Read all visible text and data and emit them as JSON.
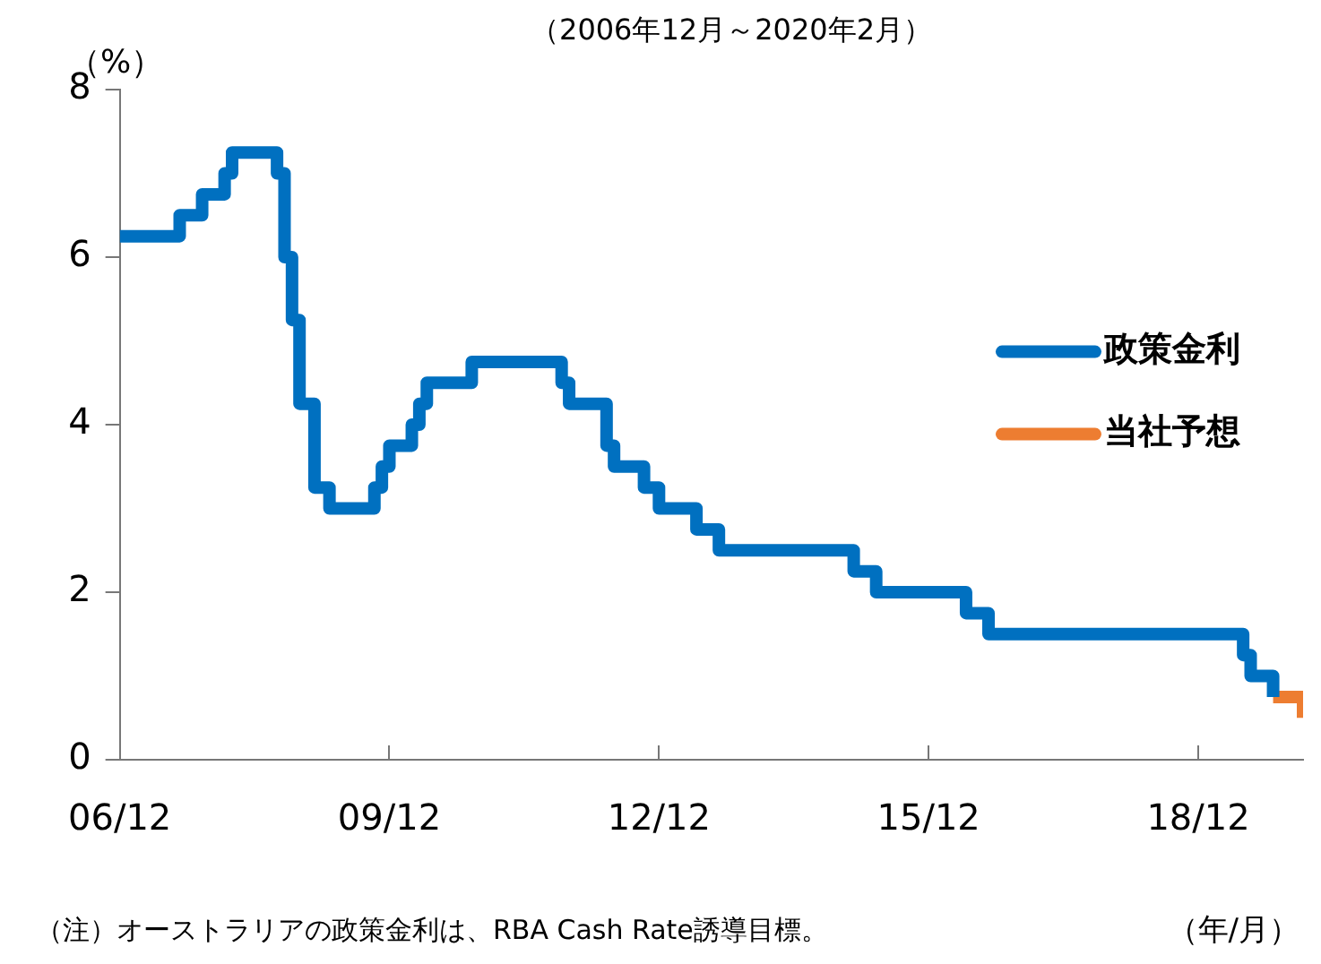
{
  "chart_data": {
    "type": "step",
    "title": "（2006年12月～2020年2月）",
    "ylabel": "（%）",
    "xlabel": "（年/月）",
    "annotations": [
      "（注）オーストラリアの政策金利は、RBA Cash Rate誘導目標。"
    ],
    "series": [
      {
        "name": "政策金利",
        "color": "#0070c0",
        "x": [
          "2006-12",
          "2007-08",
          "2007-11",
          "2008-02",
          "2008-03",
          "2008-09",
          "2008-10",
          "2008-11",
          "2008-12",
          "2009-02",
          "2009-04",
          "2009-10",
          "2009-11",
          "2009-12",
          "2010-03",
          "2010-04",
          "2010-05",
          "2010-11",
          "2011-11",
          "2011-12",
          "2012-05",
          "2012-06",
          "2012-10",
          "2012-12",
          "2013-05",
          "2013-08",
          "2015-02",
          "2015-05",
          "2016-05",
          "2016-08",
          "2019-06",
          "2019-07",
          "2019-10"
        ],
        "values": [
          6.25,
          6.5,
          6.75,
          7,
          7.25,
          7,
          6,
          5.25,
          4.25,
          3.25,
          3,
          3.25,
          3.5,
          3.75,
          4,
          4.25,
          4.5,
          4.75,
          4.5,
          4.25,
          3.75,
          3.5,
          3.25,
          3,
          2.75,
          2.5,
          2.25,
          2,
          1.75,
          1.5,
          1.25,
          1,
          0.75
        ]
      },
      {
        "name": "当社予想",
        "color": "#ed7d31",
        "x": [
          "2019-10",
          "2020-02"
        ],
        "values": [
          0.75,
          0.5
        ]
      }
    ],
    "xlim": [
      "2006-12",
      "2020-02"
    ],
    "xticks": [
      {
        "value": "2006-12",
        "label": "06/12"
      },
      {
        "value": "2009-12",
        "label": "09/12"
      },
      {
        "value": "2012-12",
        "label": "12/12"
      },
      {
        "value": "2015-12",
        "label": "15/12"
      },
      {
        "value": "2018-12",
        "label": "18/12"
      }
    ],
    "ylim": [
      0,
      8
    ],
    "yticks": [
      0,
      2,
      4,
      6,
      8
    ],
    "grid": false,
    "legend": "right",
    "line_style": "solid",
    "marker": "none"
  }
}
